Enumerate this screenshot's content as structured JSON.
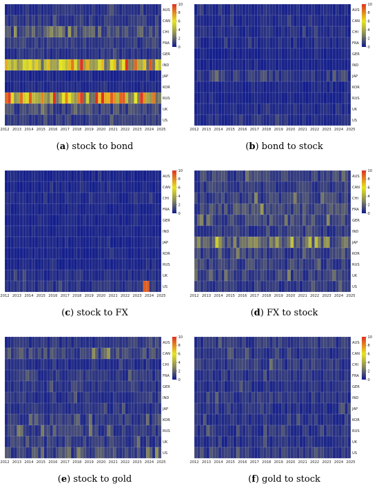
{
  "figure": {
    "panels": [
      {
        "id": "a",
        "letter": "a",
        "caption": "stock to bond",
        "show_colorbar": true
      },
      {
        "id": "b",
        "letter": "b",
        "caption": "bond to stock",
        "show_colorbar": true
      },
      {
        "id": "c",
        "letter": "c",
        "caption": "stock to FX",
        "show_colorbar": true
      },
      {
        "id": "d",
        "letter": "d",
        "caption": "FX to stock",
        "show_colorbar": true
      },
      {
        "id": "e",
        "letter": "e",
        "caption": "stock to gold",
        "show_colorbar": true
      },
      {
        "id": "f",
        "letter": "f",
        "caption": "gold to stock",
        "show_colorbar": true
      }
    ]
  },
  "chart_data": {
    "type": "heatmap",
    "x_ticks": [
      "2012",
      "2013",
      "2014",
      "2015",
      "2016",
      "2017",
      "2018",
      "2019",
      "2020",
      "2021",
      "2022",
      "2023",
      "2024",
      "2025"
    ],
    "rows": [
      "AUS",
      "CAN",
      "CHI",
      "FRA",
      "GER",
      "IND",
      "JAP",
      "KOR",
      "RUS",
      "UK",
      "US"
    ],
    "colorbar": {
      "min": 0,
      "max": 10,
      "ticks": [
        0,
        2,
        4,
        6,
        8,
        10
      ]
    },
    "colors": {
      "low": "#0f1a8f",
      "mid": "#8a8a5a",
      "high_yellow": "#e6e61e",
      "max_red": "#e03020"
    },
    "panels": [
      {
        "id": "a",
        "rows": [
          {
            "row": "AUS",
            "level": 0.6
          },
          {
            "row": "CAN",
            "level": 0.8
          },
          {
            "row": "CHI",
            "level": 1.5
          },
          {
            "row": "FRA",
            "level": 0.8
          },
          {
            "row": "GER",
            "level": 0.6
          },
          {
            "row": "IND",
            "level": 4.5
          },
          {
            "row": "JAP",
            "level": 0.3
          },
          {
            "row": "KOR",
            "level": 0.4
          },
          {
            "row": "RUS",
            "level": 6.0
          },
          {
            "row": "UK",
            "level": 1.2
          },
          {
            "row": "US",
            "level": 0.8
          }
        ]
      },
      {
        "id": "b",
        "rows": [
          {
            "row": "AUS",
            "level": 0.4
          },
          {
            "row": "CAN",
            "level": 0.4
          },
          {
            "row": "CHI",
            "level": 0.5
          },
          {
            "row": "FRA",
            "level": 0.4
          },
          {
            "row": "GER",
            "level": 0.3
          },
          {
            "row": "IND",
            "level": 0.3
          },
          {
            "row": "JAP",
            "level": 0.8
          },
          {
            "row": "KOR",
            "level": 0.3
          },
          {
            "row": "RUS",
            "level": 0.3
          },
          {
            "row": "UK",
            "level": 0.4
          },
          {
            "row": "US",
            "level": 0.5
          }
        ]
      },
      {
        "id": "c",
        "rows": [
          {
            "row": "AUS",
            "level": 0.3
          },
          {
            "row": "CAN",
            "level": 0.3
          },
          {
            "row": "CHI",
            "level": 0.4
          },
          {
            "row": "FRA",
            "level": 0.3
          },
          {
            "row": "GER",
            "level": 0.3
          },
          {
            "row": "IND",
            "level": 0.3
          },
          {
            "row": "JAP",
            "level": 0.3
          },
          {
            "row": "KOR",
            "level": 0.3
          },
          {
            "row": "RUS",
            "level": 0.3
          },
          {
            "row": "UK",
            "level": 0.5
          },
          {
            "row": "US",
            "level": 0.6,
            "peak": {
              "x": 2023.8,
              "value": 9.0
            }
          }
        ]
      },
      {
        "id": "d",
        "rows": [
          {
            "row": "AUS",
            "level": 1.0
          },
          {
            "row": "CAN",
            "level": 0.8
          },
          {
            "row": "CHI",
            "level": 1.0
          },
          {
            "row": "FRA",
            "level": 1.2
          },
          {
            "row": "GER",
            "level": 1.2
          },
          {
            "row": "IND",
            "level": 0.8
          },
          {
            "row": "JAP",
            "level": 2.0
          },
          {
            "row": "KOR",
            "level": 1.0
          },
          {
            "row": "RUS",
            "level": 1.0
          },
          {
            "row": "UK",
            "level": 1.0
          },
          {
            "row": "US",
            "level": 0.8
          }
        ]
      },
      {
        "id": "e",
        "rows": [
          {
            "row": "AUS",
            "level": 0.6
          },
          {
            "row": "CAN",
            "level": 1.2
          },
          {
            "row": "CHI",
            "level": 0.5
          },
          {
            "row": "FRA",
            "level": 0.7
          },
          {
            "row": "GER",
            "level": 0.6
          },
          {
            "row": "IND",
            "level": 0.6
          },
          {
            "row": "JAP",
            "level": 0.6
          },
          {
            "row": "KOR",
            "level": 0.8
          },
          {
            "row": "RUS",
            "level": 0.9
          },
          {
            "row": "UK",
            "level": 0.9
          },
          {
            "row": "US",
            "level": 1.2
          }
        ]
      },
      {
        "id": "f",
        "rows": [
          {
            "row": "AUS",
            "level": 0.8
          },
          {
            "row": "CAN",
            "level": 0.6
          },
          {
            "row": "CHI",
            "level": 0.8
          },
          {
            "row": "FRA",
            "level": 0.7
          },
          {
            "row": "GER",
            "level": 0.6
          },
          {
            "row": "IND",
            "level": 0.7
          },
          {
            "row": "JAP",
            "level": 0.6
          },
          {
            "row": "KOR",
            "level": 0.6
          },
          {
            "row": "RUS",
            "level": 0.7
          },
          {
            "row": "UK",
            "level": 0.6
          },
          {
            "row": "US",
            "level": 0.8
          }
        ]
      }
    ]
  }
}
